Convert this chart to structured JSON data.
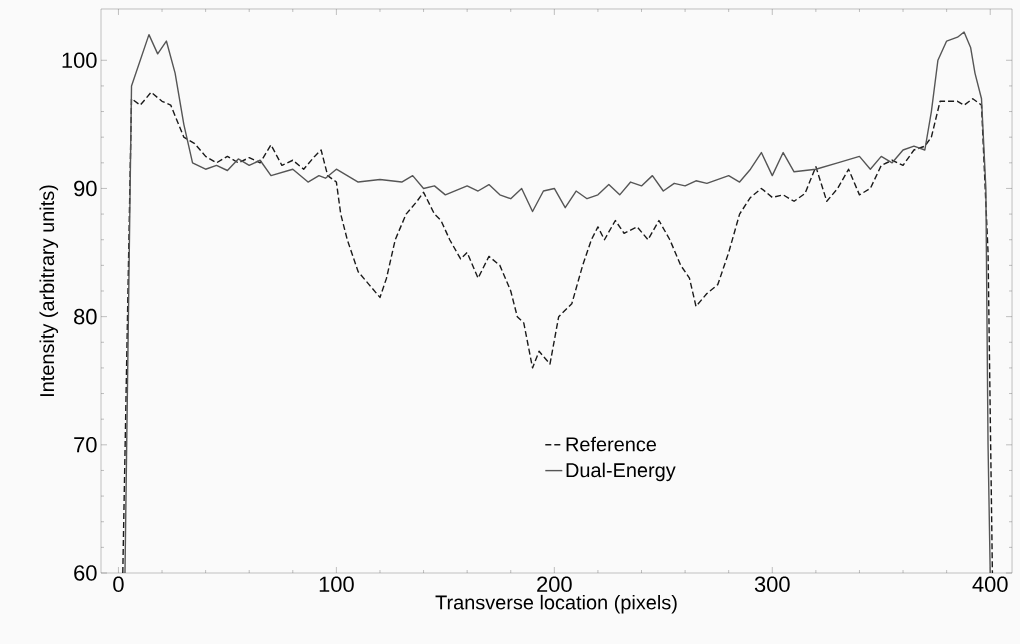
{
  "chart_data": {
    "type": "line",
    "xlabel": "Transverse location (pixels)",
    "ylabel": "Intensity (arbitrary units)",
    "xlim": [
      -8,
      410
    ],
    "ylim": [
      60,
      104
    ],
    "xticks": [
      0,
      100,
      200,
      300,
      400
    ],
    "yticks": [
      60,
      70,
      80,
      90,
      100
    ],
    "grid": false,
    "legend": "bottom",
    "marker": "none",
    "series": [
      {
        "name": "Reference",
        "color": "#1a1a1a",
        "line_style": "dashed",
        "x": [
          2,
          6,
          10,
          15,
          20,
          24,
          30,
          35,
          40,
          45,
          50,
          55,
          60,
          65,
          70,
          75,
          80,
          85,
          90,
          93,
          96,
          100,
          102,
          105,
          110,
          115,
          120,
          123,
          127,
          132,
          137,
          140,
          145,
          148,
          152,
          157,
          160,
          165,
          170,
          175,
          180,
          183,
          186,
          190,
          193,
          198,
          202,
          208,
          213,
          217,
          220,
          223,
          228,
          232,
          238,
          243,
          248,
          253,
          258,
          262,
          265,
          270,
          275,
          280,
          285,
          290,
          295,
          300,
          305,
          310,
          315,
          320,
          325,
          330,
          335,
          340,
          345,
          350,
          355,
          360,
          365,
          370,
          373,
          377,
          385,
          388,
          392,
          396,
          399,
          401
        ],
        "values": [
          60,
          97,
          96.5,
          97.5,
          96.8,
          96.5,
          94,
          93.5,
          92.5,
          92,
          92.5,
          92,
          92.4,
          92,
          93.4,
          91.8,
          92.2,
          91.5,
          92.5,
          93,
          91,
          90.5,
          88,
          86,
          83.5,
          82.5,
          81.5,
          83,
          86,
          88,
          89,
          89.7,
          88,
          87.5,
          86,
          84.5,
          85,
          83,
          84.7,
          84,
          82,
          80,
          79.5,
          76,
          77.3,
          76.3,
          80,
          81,
          84,
          86,
          87,
          86,
          87.5,
          86.5,
          87,
          86,
          87.5,
          86,
          84,
          83,
          80.8,
          81.8,
          82.5,
          85,
          88,
          89.3,
          90,
          89.3,
          89.5,
          89,
          89.6,
          91.7,
          89,
          90,
          91.5,
          89.5,
          90,
          91.8,
          92.2,
          91.8,
          93,
          93.3,
          94,
          96.8,
          96.8,
          96.5,
          97,
          96.5,
          85,
          60
        ]
      },
      {
        "name": "Dual-Energy",
        "color": "#555555",
        "line_style": "solid",
        "x": [
          3,
          6,
          10,
          14,
          18,
          22,
          26,
          30,
          34,
          40,
          45,
          50,
          55,
          60,
          65,
          70,
          80,
          87,
          92,
          95,
          100,
          105,
          110,
          120,
          130,
          135,
          140,
          145,
          150,
          160,
          165,
          170,
          175,
          180,
          185,
          190,
          195,
          200,
          205,
          210,
          215,
          220,
          225,
          230,
          235,
          240,
          245,
          250,
          255,
          260,
          265,
          270,
          280,
          285,
          290,
          295,
          300,
          305,
          310,
          320,
          330,
          340,
          345,
          350,
          355,
          360,
          365,
          370,
          373,
          376,
          380,
          385,
          388,
          391,
          393,
          396,
          398,
          399,
          400
        ],
        "values": [
          60,
          98,
          100,
          102,
          100.5,
          101.5,
          99,
          95,
          92,
          91.5,
          91.8,
          91.4,
          92.3,
          91.8,
          92.2,
          91,
          91.5,
          90.5,
          91,
          90.8,
          91.5,
          91,
          90.5,
          90.7,
          90.5,
          91,
          90,
          90.2,
          89.5,
          90.2,
          89.8,
          90.3,
          89.5,
          89.2,
          90,
          88.2,
          89.8,
          90,
          88.5,
          89.8,
          89.2,
          89.5,
          90.3,
          89.5,
          90.5,
          90.2,
          91,
          89.8,
          90.4,
          90.2,
          90.6,
          90.4,
          91,
          90.5,
          91.5,
          92.8,
          91,
          92.8,
          91.3,
          91.5,
          92,
          92.5,
          91.5,
          92.5,
          92,
          93,
          93.3,
          93,
          96,
          100,
          101.5,
          101.8,
          102.2,
          101,
          99,
          97,
          90,
          70,
          60
        ]
      }
    ]
  }
}
